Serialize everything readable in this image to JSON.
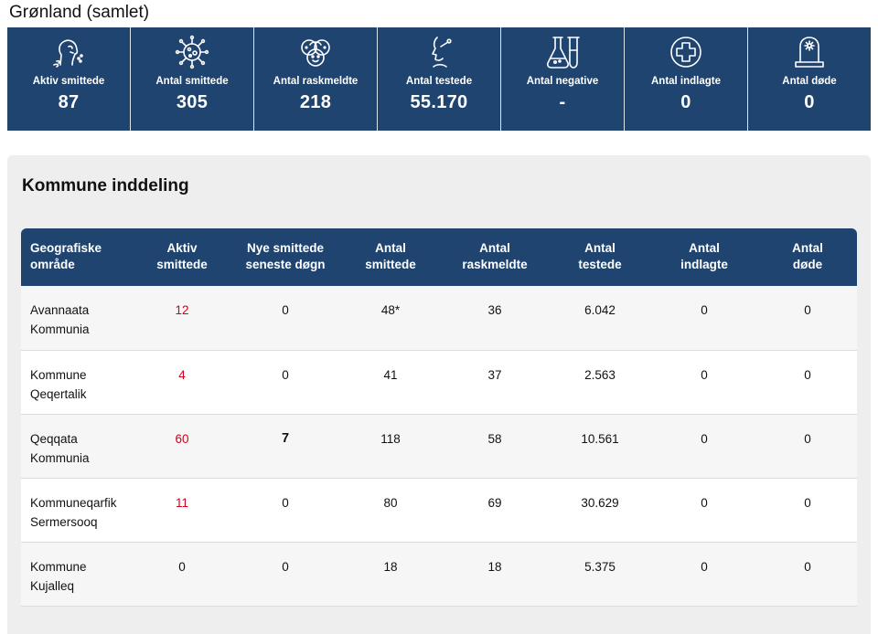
{
  "page_title": "Grønland (samlet)",
  "stats": [
    {
      "icon": "coughing-person-icon",
      "label": "Aktiv smittede",
      "value": "87"
    },
    {
      "icon": "virus-icon",
      "label": "Antal smittede",
      "value": "305"
    },
    {
      "icon": "group-faces-icon",
      "label": "Antal raskmeldte",
      "value": "218"
    },
    {
      "icon": "throat-swab-icon",
      "label": "Antal testede",
      "value": "55.170"
    },
    {
      "icon": "lab-flask-icon",
      "label": "Antal negative",
      "value": "-"
    },
    {
      "icon": "medical-cross-icon",
      "label": "Antal indlagte",
      "value": "0"
    },
    {
      "icon": "gravestone-icon",
      "label": "Antal døde",
      "value": "0"
    }
  ],
  "panel_title": "Kommune inddeling",
  "table": {
    "headers": [
      [
        "Geografiske",
        "område"
      ],
      [
        "Aktiv",
        "smittede"
      ],
      [
        "Nye smittede",
        "seneste døgn"
      ],
      [
        "Antal",
        "smittede"
      ],
      [
        "Antal",
        "raskmeldte"
      ],
      [
        "Antal",
        "testede"
      ],
      [
        "Antal",
        "indlagte"
      ],
      [
        "Antal",
        "døde"
      ]
    ],
    "rows": [
      {
        "name": [
          "Avannaata",
          "Kommunia"
        ],
        "aktiv": "12",
        "nye": "0",
        "smittede": "48*",
        "raskmeldte": "36",
        "testede": "6.042",
        "indlagte": "0",
        "doede": "0"
      },
      {
        "name": [
          "Kommune",
          "Qeqertalik"
        ],
        "aktiv": "4",
        "nye": "0",
        "smittede": "41",
        "raskmeldte": "37",
        "testede": "2.563",
        "indlagte": "0",
        "doede": "0"
      },
      {
        "name": [
          "Qeqqata",
          "Kommunia"
        ],
        "aktiv": "60",
        "nye": "7",
        "smittede": "118",
        "raskmeldte": "58",
        "testede": "10.561",
        "indlagte": "0",
        "doede": "0"
      },
      {
        "name": [
          "Kommuneqarfik",
          "Sermersooq"
        ],
        "aktiv": "11",
        "nye": "0",
        "smittede": "80",
        "raskmeldte": "69",
        "testede": "30.629",
        "indlagte": "0",
        "doede": "0"
      },
      {
        "name": [
          "Kommune",
          "Kujalleq"
        ],
        "aktiv": "0",
        "nye": "0",
        "smittede": "18",
        "raskmeldte": "18",
        "testede": "5.375",
        "indlagte": "0",
        "doede": "0"
      }
    ]
  },
  "colors": {
    "navy": "#1f4470",
    "active_red": "#d0021b",
    "panel_bg": "#eeeeee"
  }
}
